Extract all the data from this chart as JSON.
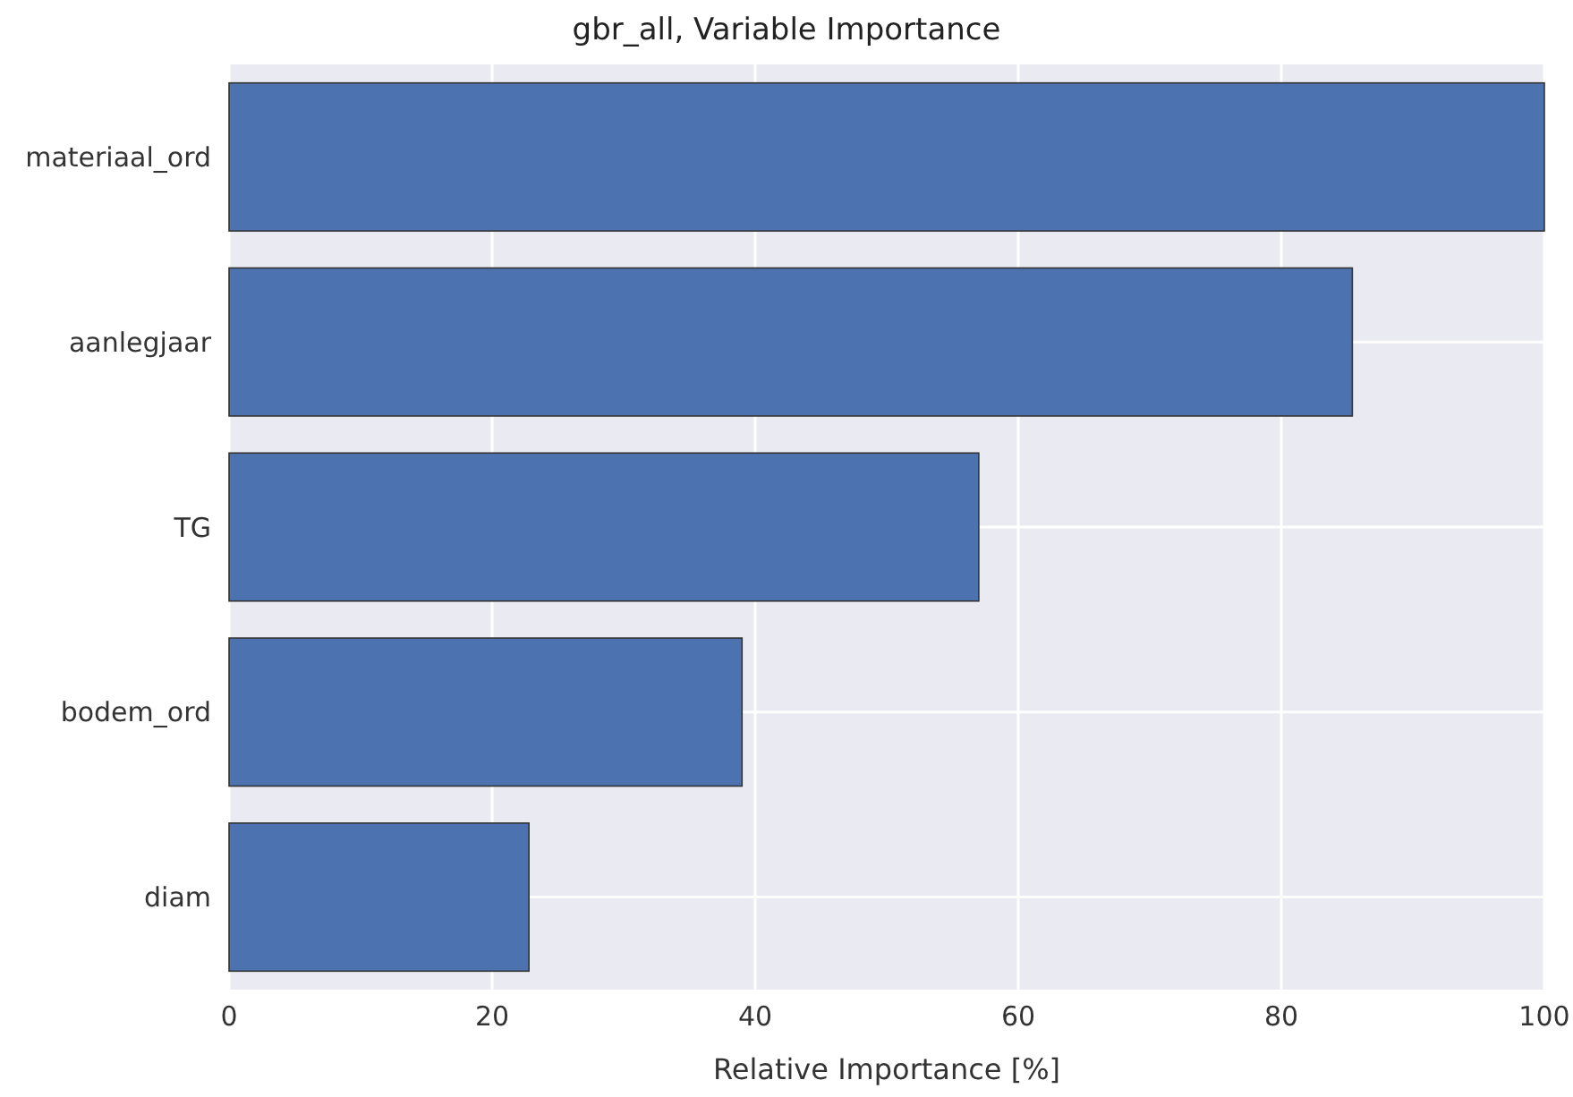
{
  "chart_data": {
    "type": "bar",
    "orientation": "horizontal",
    "title": "gbr_all, Variable Importance",
    "xlabel": "Relative Importance [%]",
    "categories": [
      "materiaal_ord",
      "aanlegjaar",
      "TG",
      "bodem_ord",
      "diam"
    ],
    "values": [
      100,
      85.4,
      57,
      39,
      22.8
    ],
    "color": "#4c72b0",
    "xlim": [
      0,
      100
    ],
    "xticks": [
      0,
      20,
      40,
      60,
      80,
      100
    ],
    "grid": true
  }
}
